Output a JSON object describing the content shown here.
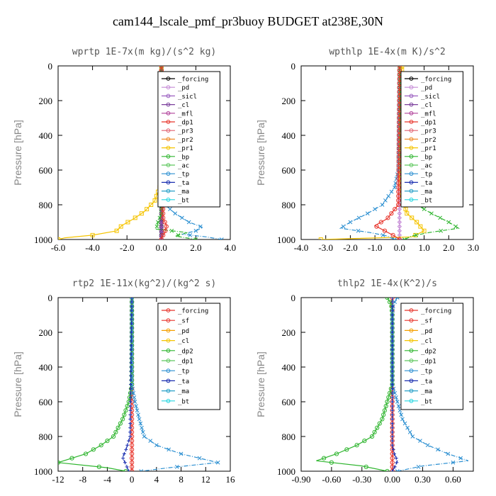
{
  "figure_title": "cam144_lscale_pmf_pr3buoy  BUDGET at238E,30N",
  "chart_data": [
    {
      "type": "line",
      "title": "wprtp  1E-7x(m kg)/(s^2 kg)",
      "ylabel": "Pressure [hPa]",
      "xlim": [
        -6.0,
        4.0
      ],
      "xticks": [
        -6.0,
        -4.0,
        -2.0,
        0.0,
        2.0,
        4.0
      ],
      "xtick_labels": [
        "-6.0",
        "-4.0",
        "-2.0",
        "0.0",
        "2.0",
        "4.0"
      ],
      "ylim": [
        0,
        1000
      ],
      "yticks": [
        0,
        200,
        400,
        600,
        800,
        1000
      ],
      "legend_position": "top-right",
      "legend": [
        "_forcing",
        "_pd",
        "_sicl",
        "_cl",
        "_mfl",
        "_dp1",
        "_pr3",
        "_pr2",
        "_pr1",
        "_bp",
        "_ac",
        "_tp",
        "_ta",
        "_ma",
        "_bt"
      ],
      "series": [
        {
          "name": "_forcing",
          "color": "#000000",
          "marker": "circle",
          "pressure": [
            0,
            200,
            400,
            600,
            800,
            1000
          ],
          "values": [
            0,
            0,
            0,
            0,
            0,
            0
          ]
        },
        {
          "name": "_pd",
          "color": "#c58ad6",
          "marker": "diamond",
          "pressure": [
            0,
            1000
          ],
          "values": [
            0,
            0
          ]
        },
        {
          "name": "_cl",
          "color": "#7a3e9c",
          "marker": "triangle",
          "pressure": [
            0,
            1000
          ],
          "values": [
            0,
            0
          ]
        },
        {
          "name": "_pr1",
          "color": "#f5c400",
          "marker": "square",
          "pressure": [
            0,
            600,
            700,
            780,
            840,
            880,
            920,
            950,
            975,
            990,
            1000
          ],
          "values": [
            0,
            0,
            -0.1,
            -0.4,
            -1.0,
            -1.6,
            -2.3,
            -2.6,
            -4.0,
            -5.6,
            -6.0
          ]
        },
        {
          "name": "_tp",
          "color": "#2b8fd1",
          "marker": "cross",
          "pressure": [
            0,
            600,
            750,
            800,
            850,
            900,
            930,
            950,
            970,
            985,
            1000
          ],
          "values": [
            0,
            0,
            0.05,
            0.2,
            0.8,
            1.6,
            2.4,
            2.0,
            1.2,
            2.6,
            3.5
          ]
        },
        {
          "name": "_bp",
          "color": "#2fb52f",
          "marker": "cross",
          "pressure": [
            0,
            850,
            900,
            940,
            960,
            980,
            1000
          ],
          "values": [
            0,
            0,
            -0.2,
            -0.3,
            1.5,
            0.8,
            2.0
          ]
        },
        {
          "name": "_dp1",
          "color": "#e8342b",
          "marker": "circle",
          "pressure": [
            0,
            880,
            920,
            960,
            990,
            1000
          ],
          "values": [
            0,
            0.1,
            0.3,
            0.2,
            0,
            0
          ]
        }
      ]
    },
    {
      "type": "line",
      "title": "wpthlp  1E-4x(m K)/s^2",
      "ylabel": "Pressure [hPa]",
      "xlim": [
        -4.0,
        3.0
      ],
      "xticks": [
        -4.0,
        -3.0,
        -2.0,
        -1.0,
        0.0,
        1.0,
        2.0,
        3.0
      ],
      "xtick_labels": [
        "-4.0",
        "-3.0",
        "-2.0",
        "-1.0",
        "0.0",
        "1.0",
        "2.0",
        "3.0"
      ],
      "ylim": [
        0,
        1000
      ],
      "yticks": [
        0,
        200,
        400,
        600,
        800,
        1000
      ],
      "legend_position": "top-right",
      "legend": [
        "_forcing",
        "_pd",
        "_sicl",
        "_cl",
        "_mfl",
        "_dp1",
        "_pr3",
        "_pr2",
        "_pr1",
        "_bp",
        "_ac",
        "_tp",
        "_ta",
        "_ma",
        "_bt"
      ],
      "series": [
        {
          "name": "_pd",
          "color": "#c58ad6",
          "marker": "diamond",
          "pressure": [
            0,
            200,
            400,
            600,
            800,
            1000
          ],
          "values": [
            0,
            0,
            0,
            0,
            0,
            0
          ]
        },
        {
          "name": "_pr1",
          "color": "#f5c400",
          "marker": "square",
          "pressure": [
            0,
            600,
            750,
            850,
            900,
            950,
            985,
            1000
          ],
          "values": [
            0.1,
            0.05,
            0.1,
            0.3,
            0.7,
            1.0,
            0.5,
            -3.2
          ]
        },
        {
          "name": "_tp",
          "color": "#2b8fd1",
          "marker": "cross",
          "pressure": [
            0,
            600,
            700,
            800,
            850,
            900,
            935,
            960,
            980,
            1000
          ],
          "values": [
            0,
            -0.05,
            -0.2,
            -0.7,
            -1.3,
            -2.0,
            -2.4,
            -1.2,
            -0.5,
            -0.2
          ]
        },
        {
          "name": "_bp",
          "color": "#2fb52f",
          "marker": "cross",
          "pressure": [
            0,
            600,
            700,
            800,
            850,
            900,
            935,
            960,
            980,
            1000
          ],
          "values": [
            0,
            0.05,
            0.2,
            0.7,
            1.3,
            2.0,
            2.4,
            1.2,
            0.5,
            0.2
          ]
        },
        {
          "name": "_dp1",
          "color": "#e8342b",
          "marker": "circle",
          "pressure": [
            0,
            800,
            880,
            920,
            950,
            980,
            1000
          ],
          "values": [
            0,
            -0.05,
            -0.5,
            -1.0,
            -0.6,
            -0.2,
            0
          ]
        }
      ]
    },
    {
      "type": "line",
      "title": "rtp2  1E-11x(kg^2)/(kg^2 s)",
      "ylabel": "Pressure [hPa]",
      "xlim": [
        -12,
        16
      ],
      "xticks": [
        -12,
        -8,
        -4,
        0,
        4,
        8,
        12,
        16
      ],
      "xtick_labels": [
        "-12",
        "-8",
        "-4",
        "0",
        "4",
        "8",
        "12",
        "16"
      ],
      "ylim": [
        0,
        1000
      ],
      "yticks": [
        0,
        200,
        400,
        600,
        800,
        1000
      ],
      "legend_position": "top-right",
      "legend": [
        "_forcing",
        "_sf",
        "_pd",
        "_cl",
        "_dp2",
        "_dp1",
        "_tp",
        "_ta",
        "_ma",
        "_bt"
      ],
      "series": [
        {
          "name": "_forcing",
          "color": "#e8342b",
          "marker": "circle",
          "pressure": [
            0,
            200,
            400,
            600,
            800,
            1000
          ],
          "values": [
            0,
            0,
            0,
            0,
            0,
            0
          ]
        },
        {
          "name": "_dp1",
          "color": "#2fb52f",
          "marker": "circle",
          "pressure": [
            0,
            500,
            600,
            700,
            800,
            850,
            900,
            950,
            980,
            1000
          ],
          "values": [
            0,
            0,
            -0.5,
            -1.5,
            -3.0,
            -5.0,
            -7.5,
            -12.0,
            -4.0,
            -1.0
          ]
        },
        {
          "name": "_tp",
          "color": "#2b8fd1",
          "marker": "cross",
          "pressure": [
            0,
            500,
            600,
            700,
            800,
            850,
            900,
            950,
            980,
            1000
          ],
          "values": [
            0,
            0,
            0.5,
            1.2,
            2.0,
            4.0,
            8.0,
            14.0,
            6.0,
            1.5
          ]
        },
        {
          "name": "_ta",
          "color": "#1a2fb0",
          "marker": "plus",
          "pressure": [
            0,
            800,
            880,
            920,
            960,
            1000
          ],
          "values": [
            0,
            -0.3,
            -1.0,
            -1.5,
            -1.0,
            -0.5
          ]
        }
      ]
    },
    {
      "type": "line",
      "title": "thlp2  1E-4x(K^2)/s",
      "ylabel": "Pressure [hPa]",
      "xlim": [
        -0.9,
        0.8
      ],
      "xticks": [
        -0.9,
        -0.6,
        -0.3,
        0.0,
        0.3,
        0.6
      ],
      "xtick_labels": [
        "-0.90",
        "-0.60",
        "-0.30",
        "0.00",
        "0.30",
        "0.60"
      ],
      "ylim": [
        0,
        1000
      ],
      "yticks": [
        0,
        200,
        400,
        600,
        800,
        1000
      ],
      "legend_position": "top-right",
      "legend": [
        "_forcing",
        "_sf",
        "_pd",
        "_cl",
        "_dp2",
        "_dp1",
        "_tp",
        "_ta",
        "_ma",
        "_bt"
      ],
      "series": [
        {
          "name": "_forcing",
          "color": "#e8342b",
          "marker": "circle",
          "pressure": [
            0,
            200,
            400,
            600,
            800,
            1000
          ],
          "values": [
            0,
            0,
            0,
            0,
            0,
            0
          ]
        },
        {
          "name": "_dp1",
          "color": "#2fb52f",
          "marker": "circle",
          "pressure": [
            0,
            20,
            40,
            100,
            500,
            600,
            700,
            800,
            850,
            900,
            940,
            970,
            1000
          ],
          "values": [
            -0.05,
            -0.03,
            -0.01,
            0,
            0,
            -0.05,
            -0.1,
            -0.2,
            -0.35,
            -0.55,
            -0.75,
            -0.3,
            -0.05
          ]
        },
        {
          "name": "_tp",
          "color": "#2b8fd1",
          "marker": "cross",
          "pressure": [
            0,
            20,
            40,
            100,
            500,
            600,
            700,
            800,
            850,
            900,
            940,
            970,
            1000
          ],
          "values": [
            0.05,
            0.03,
            0.01,
            0,
            0,
            0.05,
            0.1,
            0.2,
            0.35,
            0.55,
            0.75,
            0.3,
            0.05
          ]
        },
        {
          "name": "_ta",
          "color": "#1a2fb0",
          "marker": "plus",
          "pressure": [
            0,
            850,
            900,
            940,
            970,
            1000
          ],
          "values": [
            0,
            0,
            0.02,
            0.05,
            0.03,
            0
          ]
        }
      ]
    }
  ]
}
